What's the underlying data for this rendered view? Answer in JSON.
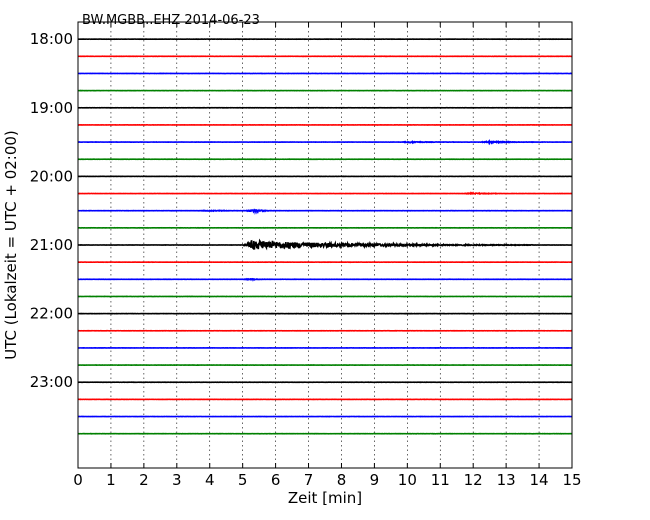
{
  "chart_data": {
    "type": "line",
    "title": "BW.MGBB..EHZ 2014-06-23",
    "xlabel": "Zeit  [min]",
    "ylabel": "UTC (Lokalzeit = UTC + 02:00)",
    "xlim": [
      0,
      15
    ],
    "x_ticks": [
      "0",
      "1",
      "2",
      "3",
      "4",
      "5",
      "6",
      "7",
      "8",
      "9",
      "10",
      "11",
      "12",
      "13",
      "14",
      "15"
    ],
    "y_ticks": [
      "18:00",
      "19:00",
      "20:00",
      "21:00",
      "22:00",
      "23:00"
    ],
    "ylim_minutes_after_1800": [
      -15,
      375
    ],
    "trace_interval_minutes": 15,
    "trace_colors": [
      "#000000",
      "#ff0000",
      "#0000ff",
      "#008000"
    ],
    "grid": true,
    "traces": [
      {
        "utc": "18:00",
        "events": []
      },
      {
        "utc": "18:15",
        "events": []
      },
      {
        "utc": "18:30",
        "events": []
      },
      {
        "utc": "18:45",
        "events": []
      },
      {
        "utc": "19:00",
        "events": []
      },
      {
        "utc": "19:15",
        "events": []
      },
      {
        "utc": "19:30",
        "events": [
          {
            "t_min": 10.1,
            "amp": 0.45,
            "dur": 1.4
          },
          {
            "t_min": 12.5,
            "amp": 0.6,
            "dur": 1.8
          }
        ]
      },
      {
        "utc": "19:45",
        "events": []
      },
      {
        "utc": "20:00",
        "events": []
      },
      {
        "utc": "20:15",
        "events": [
          {
            "t_min": 12.0,
            "amp": 0.45,
            "dur": 1.2
          }
        ]
      },
      {
        "utc": "20:30",
        "events": [
          {
            "t_min": 4.0,
            "amp": 0.3,
            "dur": 1.6
          },
          {
            "t_min": 5.4,
            "amp": 1.2,
            "dur": 0.6
          }
        ]
      },
      {
        "utc": "20:45",
        "events": []
      },
      {
        "utc": "21:00",
        "events": [
          {
            "t_min": 5.3,
            "amp": 4.0,
            "dur": 8.5
          }
        ]
      },
      {
        "utc": "21:15",
        "events": []
      },
      {
        "utc": "21:30",
        "events": [
          {
            "t_min": 5.3,
            "amp": 0.5,
            "dur": 0.5
          }
        ]
      },
      {
        "utc": "21:45",
        "events": []
      },
      {
        "utc": "22:00",
        "events": []
      },
      {
        "utc": "22:15",
        "events": []
      },
      {
        "utc": "22:30",
        "events": []
      },
      {
        "utc": "22:45",
        "events": []
      },
      {
        "utc": "23:00",
        "events": []
      },
      {
        "utc": "23:15",
        "events": []
      },
      {
        "utc": "23:30",
        "events": []
      },
      {
        "utc": "23:45",
        "events": []
      }
    ]
  }
}
